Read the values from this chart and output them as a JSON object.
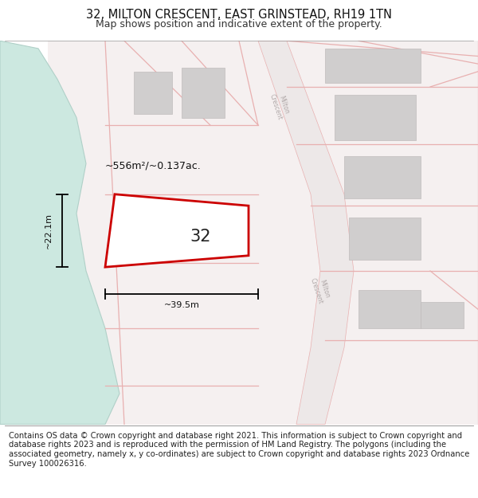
{
  "title": "32, MILTON CRESCENT, EAST GRINSTEAD, RH19 1TN",
  "subtitle": "Map shows position and indicative extent of the property.",
  "footer": "Contains OS data © Crown copyright and database right 2021. This information is subject to Crown copyright and database rights 2023 and is reproduced with the permission of HM Land Registry. The polygons (including the associated geometry, namely x, y co-ordinates) are subject to Crown copyright and database rights 2023 Ordnance Survey 100026316.",
  "map_bg": "#f2eeee",
  "land_bg": "#faf8f8",
  "green_color": "#cce8e0",
  "green_edge": "#b0d0c8",
  "road_fill": "#ede8e8",
  "road_edge": "#e8b0b0",
  "plot_outline": "#cc0000",
  "plot_fill": "#ffffff",
  "building_color": "#d0cece",
  "building_edge": "#c0bcbc",
  "dim_color": "#111111",
  "road_label_color": "#b0a8a8",
  "area_text": "~556m²/~0.137ac.",
  "number_label": "32",
  "width_label": "~39.5m",
  "height_label": "~22.1m",
  "title_fontsize": 10.5,
  "subtitle_fontsize": 9,
  "footer_fontsize": 7.2,
  "title_color": "#111111",
  "subtitle_color": "#333333"
}
